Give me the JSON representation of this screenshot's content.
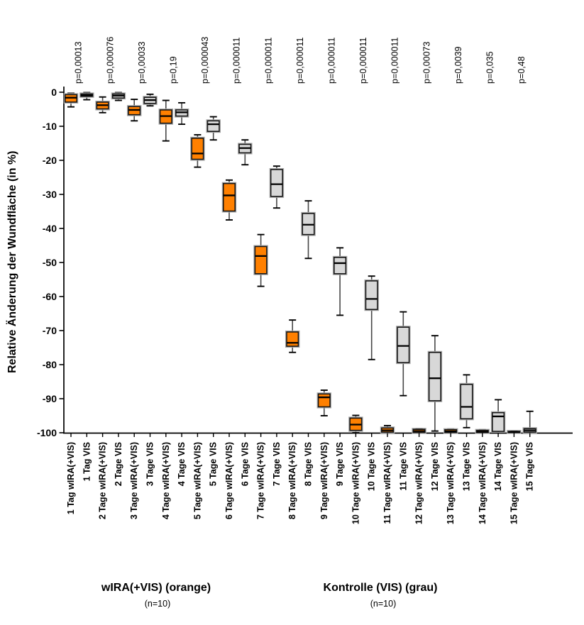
{
  "chart_data": {
    "type": "boxplot",
    "title": "",
    "ylabel": "Relative Änderung der Wundfläche (in %)",
    "ylim": [
      -100,
      0
    ],
    "y_ticks": [
      0,
      -10,
      -20,
      -30,
      -40,
      -50,
      -60,
      -70,
      -80,
      -90,
      -100
    ],
    "colors": {
      "wira_fill": "#FF8000",
      "vis_fill": "#D8D8D8",
      "box_border": "#161616",
      "halo": "#a8a8a8",
      "whisker": "#474747",
      "median": "#000000",
      "axis": "#000000"
    },
    "groups": [
      {
        "label": "wIRA(+VIS) (orange)",
        "n": "(n=10)"
      },
      {
        "label": "Kontrolle (VIS) (grau)",
        "n": "(n=10)"
      }
    ],
    "days": [
      {
        "day": 1,
        "p": "p=0,00013",
        "wira": {
          "label": "1 Tag wIRA(+VIS)",
          "low": -4.3,
          "q1": -2.9,
          "median": -1.6,
          "q3": -0.7,
          "high": -0.3
        },
        "vis": {
          "label": "1 Tag VIS",
          "low": -2.2,
          "q1": -1.2,
          "median": -0.9,
          "q3": -0.5,
          "high": -0.1
        }
      },
      {
        "day": 2,
        "p": "p=0,000076",
        "wira": {
          "label": "2 Tage wIRA(+VIS)",
          "low": -6.0,
          "q1": -4.9,
          "median": -3.8,
          "q3": -2.9,
          "high": -1.4
        },
        "vis": {
          "label": "2 Tage VIS",
          "low": -2.4,
          "q1": -1.7,
          "median": -1.0,
          "q3": -0.5,
          "high": -0.1
        }
      },
      {
        "day": 3,
        "p": "p=0,00033",
        "wira": {
          "label": "3 Tage wIRA(+VIS)",
          "low": -8.4,
          "q1": -6.6,
          "median": -5.2,
          "q3": -4.2,
          "high": -2.1
        },
        "vis": {
          "label": "3 Tage VIS",
          "low": -4.0,
          "q1": -3.3,
          "median": -2.3,
          "q3": -1.5,
          "high": -0.6
        }
      },
      {
        "day": 4,
        "p": "p=0,19",
        "wira": {
          "label": "4 Tage wIRA(+VIS)",
          "low": -14.3,
          "q1": -9.1,
          "median": -7.0,
          "q3": -5.2,
          "high": -2.4
        },
        "vis": {
          "label": "4 Tage VIS",
          "low": -9.4,
          "q1": -7.0,
          "median": -5.9,
          "q3": -5.2,
          "high": -3.1
        }
      },
      {
        "day": 5,
        "p": "p=0,000043",
        "wira": {
          "label": "5 Tage wIRA(+VIS)",
          "low": -22.0,
          "q1": -19.7,
          "median": -18.0,
          "q3": -13.5,
          "high": -12.5
        },
        "vis": {
          "label": "5 Tage VIS",
          "low": -14.0,
          "q1": -11.5,
          "median": -9.4,
          "q3": -8.4,
          "high": -7.2
        }
      },
      {
        "day": 6,
        "p": "p=0,000011",
        "wira": {
          "label": "6 Tage wIRA(+VIS)",
          "low": -37.5,
          "q1": -34.9,
          "median": -30.3,
          "q3": -26.8,
          "high": -25.8
        },
        "vis": {
          "label": "6 Tage VIS",
          "low": -21.3,
          "q1": -17.8,
          "median": -16.4,
          "q3": -15.3,
          "high": -14.0
        }
      },
      {
        "day": 7,
        "p": "p=0,000011",
        "wira": {
          "label": "7 Tage wIRA(+VIS)",
          "low": -57.0,
          "q1": -53.3,
          "median": -48.1,
          "q3": -45.3,
          "high": -41.8
        },
        "vis": {
          "label": "7 Tage VIS",
          "low": -34.0,
          "q1": -30.6,
          "median": -27.0,
          "q3": -22.7,
          "high": -21.7
        }
      },
      {
        "day": 8,
        "p": "p=0,000011",
        "wira": {
          "label": "8 Tage wIRA(+VIS)",
          "low": -76.4,
          "q1": -74.6,
          "median": -73.6,
          "q3": -70.4,
          "high": -66.9
        },
        "vis": {
          "label": "8 Tage VIS",
          "low": -48.8,
          "q1": -41.8,
          "median": -38.9,
          "q3": -35.6,
          "high": -31.9
        }
      },
      {
        "day": 9,
        "p": "p=0,000011",
        "wira": {
          "label": "9 Tage wIRA(+VIS)",
          "low": -95.0,
          "q1": -92.4,
          "median": -89.6,
          "q3": -88.6,
          "high": -87.5
        },
        "vis": {
          "label": "9 Tage VIS",
          "low": -65.5,
          "q1": -53.3,
          "median": -50.2,
          "q3": -48.5,
          "high": -45.7
        }
      },
      {
        "day": 10,
        "p": "p=0,000011",
        "wira": {
          "label": "10 Tage wIRA(+VIS)",
          "low": -100,
          "q1": -99.3,
          "median": -97.6,
          "q3": -95.7,
          "high": -94.9
        },
        "vis": {
          "label": "10 Tage VIS",
          "low": -78.5,
          "q1": -63.8,
          "median": -60.7,
          "q3": -55.4,
          "high": -54.0
        }
      },
      {
        "day": 11,
        "p": "p=0,000011",
        "wira": {
          "label": "11 Tage wIRA(+VIS)",
          "low": -100,
          "q1": -99.8,
          "median": -99.3,
          "q3": -98.6,
          "high": -97.9
        },
        "vis": {
          "label": "11 Tage VIS",
          "low": -89.1,
          "q1": -79.4,
          "median": -74.5,
          "q3": -69.0,
          "high": -64.5
        }
      },
      {
        "day": 12,
        "p": "p=0,00073",
        "wira": {
          "label": "12 Tage wIRA(+VIS)",
          "low": -100,
          "q1": -99.9,
          "median": -99.5,
          "q3": -99.0,
          "high": -98.8
        },
        "vis": {
          "label": "12 Tage VIS",
          "low": -99.5,
          "q1": -90.6,
          "median": -84.0,
          "q3": -76.4,
          "high": -71.5
        }
      },
      {
        "day": 13,
        "p": "p=0,0039",
        "wira": {
          "label": "13 Tage wIRA(+VIS)",
          "low": -100,
          "q1": -99.9,
          "median": -99.6,
          "q3": -99.1,
          "high": -98.9
        },
        "vis": {
          "label": "13 Tage VIS",
          "low": -98.5,
          "q1": -95.9,
          "median": -92.4,
          "q3": -85.8,
          "high": -83.0
        }
      },
      {
        "day": 14,
        "p": "p=0,035",
        "wira": {
          "label": "14 Tage wIRA(+VIS)",
          "low": -100,
          "q1": -99.9,
          "median": -99.7,
          "q3": -99.3,
          "high": -99.1
        },
        "vis": {
          "label": "14 Tage VIS",
          "low": -100,
          "q1": -99.6,
          "median": -95.2,
          "q3": -94.1,
          "high": -90.3
        }
      },
      {
        "day": 15,
        "p": "p=0,48",
        "wira": {
          "label": "15 Tage wIRA(+VIS)",
          "low": -100,
          "q1": -99.9,
          "median": -99.8,
          "q3": -99.6,
          "high": -99.5
        },
        "vis": {
          "label": "15 Tage VIS",
          "low": -100,
          "q1": -99.8,
          "median": -99.3,
          "q3": -98.8,
          "high": -93.7
        }
      }
    ]
  }
}
